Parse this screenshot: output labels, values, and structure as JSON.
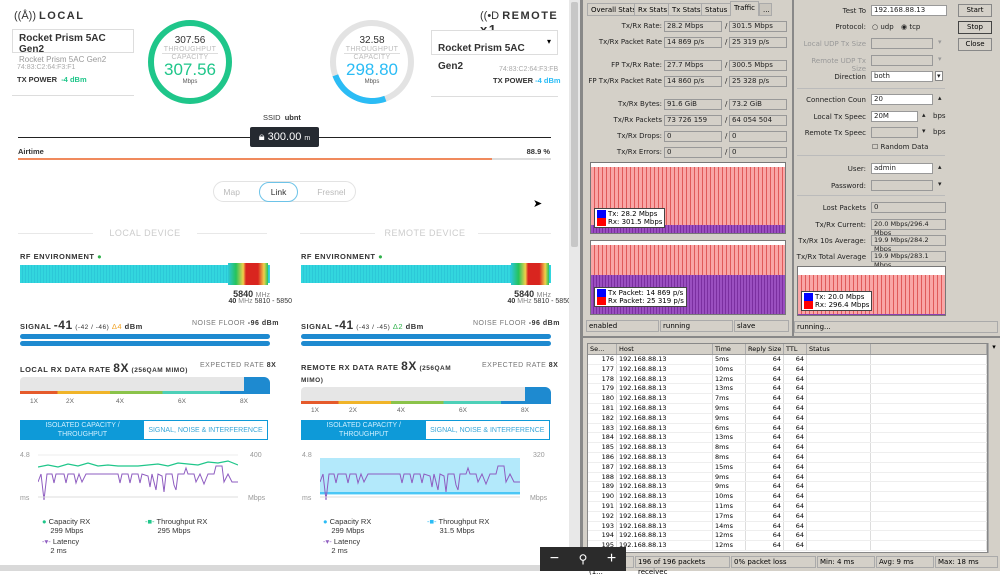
{
  "local": {
    "title": "LOCAL",
    "device_name": "Rocket Prism 5AC Gen2",
    "device_model": "Rocket Prism 5AC Gen2",
    "mac": "74:83:C2:64:F3:F1",
    "tx_power_label": "TX POWER",
    "tx_power": "-4 dBm",
    "gauge": {
      "throughput": "307.56",
      "throughput_label": "THROUGHPUT",
      "capacity_label": "CAPACITY",
      "capacity": "307.56",
      "unit": "Mbps",
      "color": "#1fc68a"
    }
  },
  "remote": {
    "title": "REMOTE",
    "count": "x1",
    "device_name": "Rocket Prism 5AC Gen2",
    "mac": "74:83:C2:64:F3:FB",
    "tx_power_label": "TX POWER",
    "tx_power": "-4 dBm",
    "gauge": {
      "throughput": "32.58",
      "throughput_label": "THROUGHPUT",
      "capacity_label": "CAPACITY",
      "capacity": "298.80",
      "unit": "Mbps",
      "color": "#2bbcf5"
    }
  },
  "link": {
    "ssid_label": "SSID",
    "ssid": "ubnt",
    "distance": "300.00",
    "distance_unit": "m",
    "airtime_label": "Airtime",
    "airtime": "88.9 %"
  },
  "view_tabs": [
    "Map",
    "Link",
    "Fresnel"
  ],
  "local_device": {
    "header": "LOCAL DEVICE",
    "rf_label": "RF ENVIRONMENT",
    "freq": "5840",
    "freq_unit": "MHz",
    "width": "40",
    "width_unit": "MHz",
    "range": "5810 - 5850",
    "signal_label": "SIGNAL",
    "signal": "-41",
    "signal_chains": "(-42 / -46)",
    "signal_delta": "Δ4",
    "signal_unit": "dBm",
    "noise_label": "NOISE FLOOR",
    "noise": "-96 dBm",
    "rate_label": "LOCAL RX DATA RATE",
    "rate": "8X",
    "rate_mod": "(256QAM MIMO)",
    "expected_label": "EXPECTED RATE",
    "expected": "8X",
    "ticks": [
      "1X",
      "2X",
      "4X",
      "6X",
      "8X"
    ],
    "btn_capacity": "ISOLATED CAPACITY / THROUGHPUT",
    "btn_signal": "SIGNAL, NOISE & INTERFERENCE",
    "chart": {
      "y_left_top": "4.8",
      "y_left_unit": "ms",
      "y_right_top": "400",
      "y_right_unit": "Mbps"
    },
    "legend": {
      "cap_label": "Capacity RX",
      "cap_val": "299 Mbps",
      "thr_label": "Throughput RX",
      "thr_val": "295 Mbps",
      "lat_label": "Latency",
      "lat_val": "2 ms"
    }
  },
  "remote_device": {
    "header": "REMOTE DEVICE",
    "rf_label": "RF ENVIRONMENT",
    "freq": "5840",
    "freq_unit": "MHz",
    "width": "40",
    "width_unit": "MHz",
    "range": "5810 - 5850",
    "signal_label": "SIGNAL",
    "signal": "-41",
    "signal_chains": "(-43 / -45)",
    "signal_delta": "Δ2",
    "signal_unit": "dBm",
    "noise_label": "NOISE FLOOR",
    "noise": "-96 dBm",
    "rate_label": "REMOTE RX DATA RATE",
    "rate": "8X",
    "rate_mod": "(256QAM MIMO)",
    "expected_label": "EXPECTED RATE",
    "expected": "8X",
    "ticks": [
      "1X",
      "2X",
      "4X",
      "6X",
      "8X"
    ],
    "btn_capacity": "ISOLATED CAPACITY / THROUGHPUT",
    "btn_signal": "SIGNAL, NOISE & INTERFERENCE",
    "chart": {
      "y_left_top": "4.8",
      "y_left_unit": "ms",
      "y_right_top": "320",
      "y_right_unit": "Mbps"
    },
    "legend": {
      "cap_label": "Capacity RX",
      "cap_val": "299 Mbps",
      "thr_label": "Throughput RX",
      "thr_val": "31.5 Mbps",
      "lat_label": "Latency",
      "lat_val": "2 ms"
    }
  },
  "traffic": {
    "tabs": [
      "Overall Stats",
      "Rx Stats",
      "Tx Stats",
      "Status",
      "Traffic",
      "..."
    ],
    "rows": [
      {
        "label": "Tx/Rx Rate:",
        "tx": "28.2 Mbps",
        "rx": "301.5 Mbps"
      },
      {
        "label": "Tx/Rx Packet Rate",
        "tx": "14 869 p/s",
        "rx": "25 319 p/s"
      },
      {
        "label": "FP Tx/Rx Rate:",
        "tx": "27.7 Mbps",
        "rx": "300.5 Mbps"
      },
      {
        "label": "FP Tx/Rx Packet Rate",
        "tx": "14 860 p/s",
        "rx": "25 328 p/s"
      },
      {
        "label": "Tx/Rx Bytes:",
        "tx": "91.6 GiB",
        "rx": "73.2 GiB"
      },
      {
        "label": "Tx/Rx Packets",
        "tx": "73 726 159",
        "rx": "64 054 504"
      },
      {
        "label": "Tx/Rx Drops:",
        "tx": "0",
        "rx": "0"
      },
      {
        "label": "Tx/Rx Errors:",
        "tx": "0",
        "rx": "0"
      }
    ],
    "graph1": {
      "tx": "Tx:  28.2 Mbps",
      "rx": "Rx:  301.5 Mbps"
    },
    "graph2": {
      "tx": "Tx Packet:  14 869 p/s",
      "rx": "Rx Packet:  25 319 p/s"
    },
    "status": [
      "enabled",
      "running",
      "slave"
    ]
  },
  "btest": {
    "test_to_label": "Test To",
    "test_to": "192.168.88.13",
    "protocol_label": "Protocol:",
    "udp": "udp",
    "tcp": "tcp",
    "local_udp_label": "Local UDP Tx Size",
    "remote_udp_label": "Remote UDP Tx Size",
    "direction_label": "Direction",
    "direction": "both",
    "conn_label": "Connection Coun",
    "conn": "20",
    "local_speed_label": "Local Tx Speec",
    "local_speed": "20M",
    "remote_speed_label": "Remote Tx Speec",
    "bps": "bps",
    "random_label": "Random Data",
    "user_label": "User:",
    "user": "admin",
    "password_label": "Password:",
    "lost_label": "Lost Packets",
    "lost": "0",
    "cur_label": "Tx/Rx Current:",
    "cur": "20.0 Mbps/296.4 Mbps",
    "avg10_label": "Tx/Rx 10s Average:",
    "avg10": "19.9 Mbps/284.2 Mbps",
    "total_label": "Tx/Rx Total Average",
    "total": "19.9 Mbps/283.1 Mbps",
    "graph": {
      "tx": "Tx:  20.0 Mbps",
      "rx": "Rx:  296.4 Mbps"
    },
    "status": "running...",
    "start": "Start",
    "stop": "Stop",
    "close": "Close"
  },
  "ping": {
    "columns": [
      "Se...",
      "Host",
      "Time",
      "Reply Size",
      "TTL",
      "Status"
    ],
    "rows": [
      [
        "176",
        "192.168.88.13",
        "5ms",
        "64",
        "64"
      ],
      [
        "177",
        "192.168.88.13",
        "10ms",
        "64",
        "64"
      ],
      [
        "178",
        "192.168.88.13",
        "12ms",
        "64",
        "64"
      ],
      [
        "179",
        "192.168.88.13",
        "13ms",
        "64",
        "64"
      ],
      [
        "180",
        "192.168.88.13",
        "7ms",
        "64",
        "64"
      ],
      [
        "181",
        "192.168.88.13",
        "9ms",
        "64",
        "64"
      ],
      [
        "182",
        "192.168.88.13",
        "9ms",
        "64",
        "64"
      ],
      [
        "183",
        "192.168.88.13",
        "6ms",
        "64",
        "64"
      ],
      [
        "184",
        "192.168.88.13",
        "13ms",
        "64",
        "64"
      ],
      [
        "185",
        "192.168.88.13",
        "8ms",
        "64",
        "64"
      ],
      [
        "186",
        "192.168.88.13",
        "8ms",
        "64",
        "64"
      ],
      [
        "187",
        "192.168.88.13",
        "15ms",
        "64",
        "64"
      ],
      [
        "188",
        "192.168.88.13",
        "9ms",
        "64",
        "64"
      ],
      [
        "189",
        "192.168.88.13",
        "9ms",
        "64",
        "64"
      ],
      [
        "190",
        "192.168.88.13",
        "10ms",
        "64",
        "64"
      ],
      [
        "191",
        "192.168.88.13",
        "11ms",
        "64",
        "64"
      ],
      [
        "192",
        "192.168.88.13",
        "17ms",
        "64",
        "64"
      ],
      [
        "193",
        "192.168.88.13",
        "14ms",
        "64",
        "64"
      ],
      [
        "194",
        "192.168.88.13",
        "12ms",
        "64",
        "64"
      ],
      [
        "195",
        "192.168.88.13",
        "12ms",
        "64",
        "64"
      ]
    ],
    "footer": [
      "196 items (1...",
      "196 of 196 packets receivec",
      "0% packet loss",
      "Min: 4 ms",
      "Avg: 9 ms",
      "Max: 18 ms"
    ]
  },
  "zoom": {
    "minus": "−",
    "icon": "⚲",
    "plus": "+"
  }
}
